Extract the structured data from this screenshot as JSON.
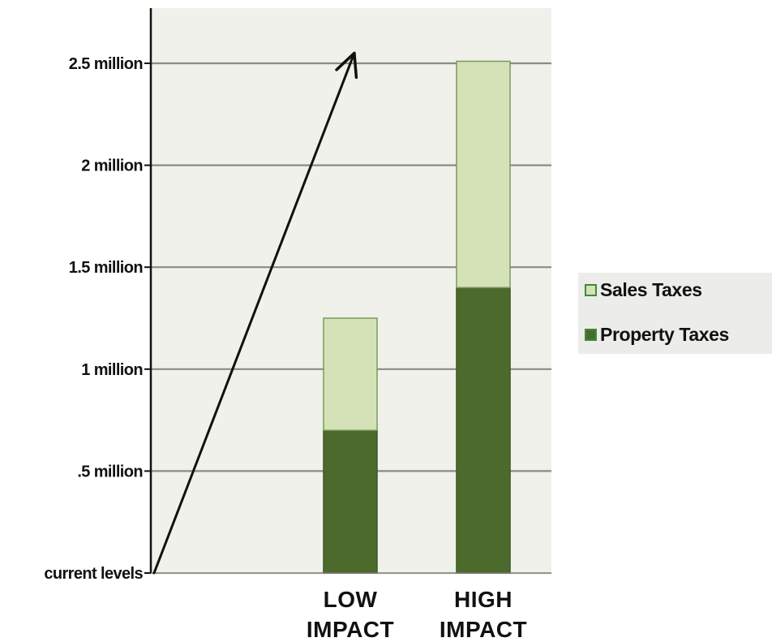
{
  "chart_data": {
    "type": "bar",
    "stacked": true,
    "categories": [
      [
        "LOW",
        "IMPACT"
      ],
      [
        "HIGH",
        "IMPACT"
      ]
    ],
    "series": [
      {
        "name": "Property Taxes",
        "values": [
          0.7,
          1.4
        ]
      },
      {
        "name": "Sales Taxes",
        "values": [
          0.55,
          1.11
        ]
      }
    ],
    "y_ticks": [
      {
        "value": 0,
        "label": "current levels"
      },
      {
        "value": 0.5,
        "label": ".5 million"
      },
      {
        "value": 1,
        "label": "1 million"
      },
      {
        "value": 1.5,
        "label": "1.5 million"
      },
      {
        "value": 2,
        "label": "2 million"
      },
      {
        "value": 2.5,
        "label": "2.5 million"
      }
    ],
    "ylim": [
      0,
      2.5
    ],
    "grid": true,
    "legend_position": "right",
    "annotation": {
      "type": "arrow",
      "from": [
        0,
        0
      ],
      "to": [
        1.1,
        2.55
      ],
      "note": "hand-drawn upward trend arrow from origin"
    },
    "colors": {
      "Property Taxes": "#4b6a2c",
      "Sales Taxes": "#d5e2b8",
      "plot_background": "#f0f1ea",
      "gridline": "#8a8a8a"
    }
  },
  "legend": {
    "items": [
      {
        "label": "Sales Taxes",
        "color": "#d5e2b8"
      },
      {
        "label": "Property Taxes",
        "color": "#4b6a2c"
      }
    ]
  }
}
